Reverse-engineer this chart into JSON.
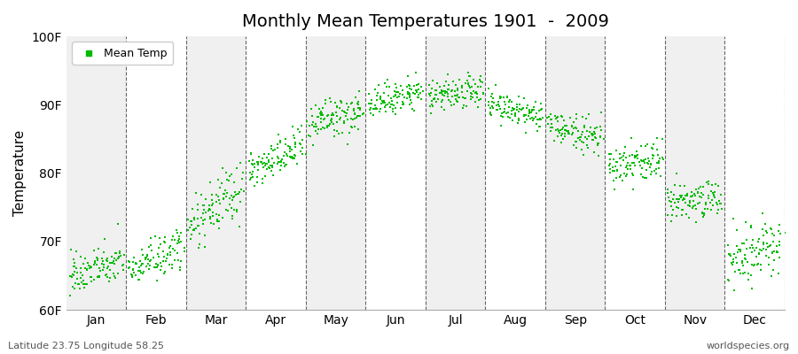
{
  "title": "Monthly Mean Temperatures 1901  -  2009",
  "ylabel": "Temperature",
  "xlabel_labels": [
    "Jan",
    "Feb",
    "Mar",
    "Apr",
    "May",
    "Jun",
    "Jul",
    "Aug",
    "Sep",
    "Oct",
    "Nov",
    "Dec"
  ],
  "ylim": [
    60,
    100
  ],
  "ytick_labels": [
    "60F",
    "70F",
    "80F",
    "90F",
    "100F"
  ],
  "ytick_values": [
    60,
    70,
    80,
    90,
    100
  ],
  "legend_label": "Mean Temp",
  "dot_color": "#00bb00",
  "bg_color_odd": "#f0f0f0",
  "bg_color_even": "#ffffff",
  "fig_color": "#ffffff",
  "subtitle": "Latitude 23.75 Longitude 58.25",
  "watermark": "worldspecies.org",
  "month_means_start": [
    65,
    66,
    72,
    80,
    87,
    90,
    91,
    90,
    87,
    81,
    75,
    67
  ],
  "month_means_end": [
    67,
    69,
    78,
    84,
    89,
    92,
    92,
    88,
    85,
    82,
    77,
    70
  ],
  "month_stds": [
    1.5,
    1.5,
    2.0,
    1.5,
    1.5,
    1.2,
    1.2,
    1.2,
    1.2,
    1.5,
    1.5,
    2.0
  ],
  "n_years": 109,
  "seed": 42
}
